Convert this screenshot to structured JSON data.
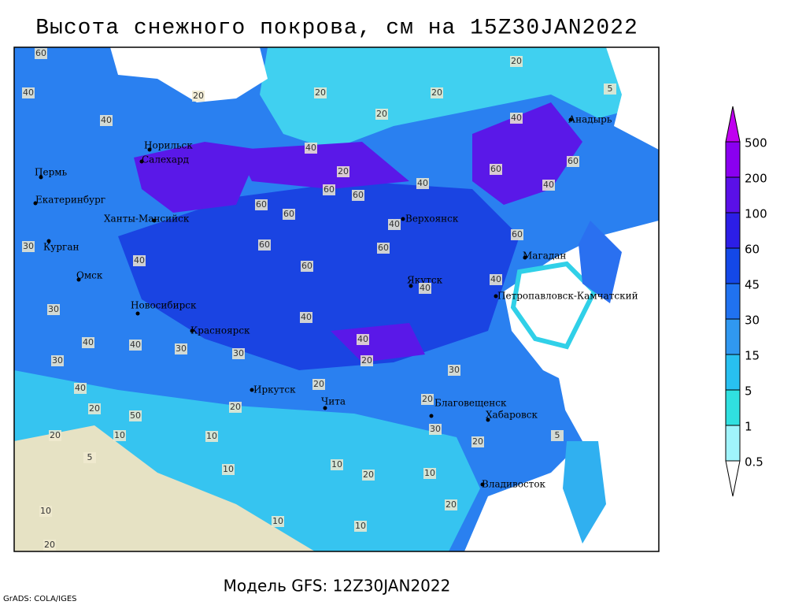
{
  "header": {
    "title": "Высота снежного покрова, см на 15Z30JAN2022"
  },
  "map": {
    "cities": [
      "Анадырь",
      "Норильск",
      "Салехард",
      "Пермь",
      "Екатеринбург",
      "Ханты-Мансийск",
      "Верхоянск",
      "Курган",
      "Омск",
      "Магадан",
      "Якутск",
      "Петропавловск-Камчатский",
      "Новосибирск",
      "Красноярск",
      "Иркутск",
      "Чита",
      "Благовещенск",
      "Хабаровск",
      "Владивосток"
    ],
    "contour_labels": [
      60,
      40,
      40,
      20,
      20,
      20,
      20,
      20,
      40,
      5,
      60,
      40,
      20,
      60,
      60,
      40,
      60,
      60,
      60,
      40,
      40,
      60,
      40,
      60,
      60,
      60,
      40,
      40,
      30,
      30,
      40,
      40,
      40,
      30,
      40,
      20,
      30,
      30,
      30,
      40,
      20,
      50,
      20,
      20,
      20,
      30,
      10,
      10,
      20,
      5,
      20,
      10,
      10,
      20,
      10,
      20,
      10,
      10,
      20,
      10,
      5
    ]
  },
  "colorbar": {
    "levels": [
      500,
      200,
      100,
      60,
      45,
      30,
      15,
      5,
      1,
      0.5
    ],
    "colors": [
      "#c000f0",
      "#8a00f0",
      "#5a10e8",
      "#2c1ee6",
      "#1448e8",
      "#2072f0",
      "#3098f0",
      "#28c0f0",
      "#30e0e0",
      "#a0f4fc",
      "#ffffff"
    ]
  },
  "footer": {
    "model": "Модель GFS: 12Z30JAN2022",
    "credit": "GrADS: COLA/IGES"
  }
}
